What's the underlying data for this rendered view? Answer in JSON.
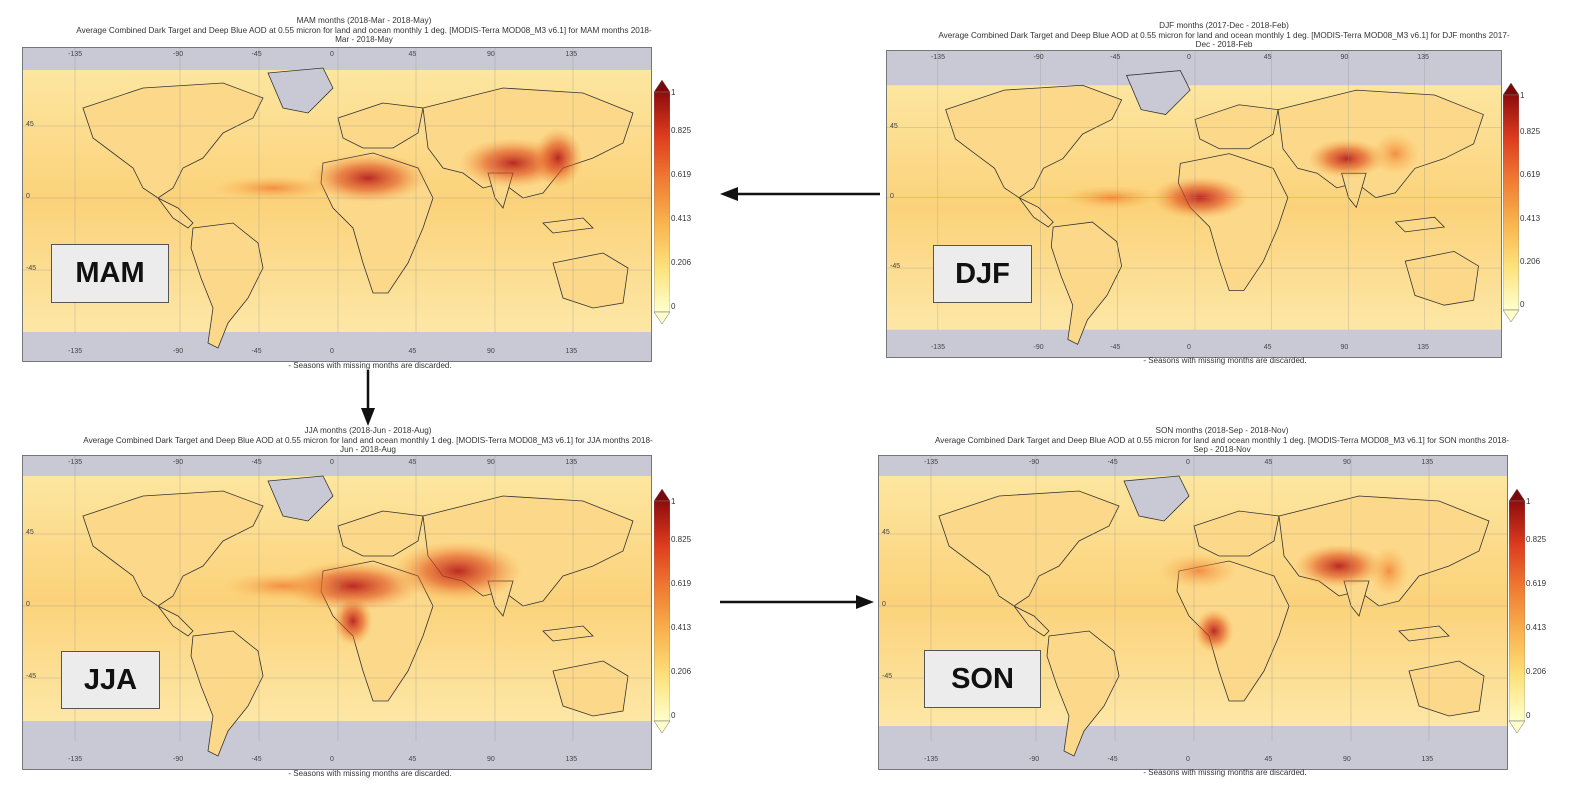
{
  "panels": {
    "mam": {
      "title1": "MAM months (2018-Mar - 2018-May)",
      "title2": "Average Combined Dark Target and Deep Blue AOD at 0.55 micron for land and ocean monthly 1 deg. [MODIS-Terra MOD08_M3 v6.1] for MAM months 2018-",
      "title3": "Mar - 2018-May",
      "season_label": "MAM",
      "footnote": "- Seasons with missing months are discarded."
    },
    "djf": {
      "title1": "DJF months (2017-Dec - 2018-Feb)",
      "title2": "Average Combined Dark Target and Deep Blue AOD at 0.55 micron for land and ocean monthly 1 deg. [MODIS-Terra MOD08_M3 v6.1] for DJF months 2017-",
      "title3": "Dec - 2018-Feb",
      "season_label": "DJF",
      "footnote": "- Seasons with missing months are discarded."
    },
    "jja": {
      "title1": "JJA months (2018-Jun - 2018-Aug)",
      "title2": "Average Combined Dark Target and Deep Blue AOD at 0.55 micron for land and ocean monthly 1 deg. [MODIS-Terra MOD08_M3 v6.1] for JJA months 2018-",
      "title3": "Jun - 2018-Aug",
      "season_label": "JJA",
      "footnote": "- Seasons with missing months are discarded."
    },
    "son": {
      "title1": "SON months (2018-Sep - 2018-Nov)",
      "title2": "Average Combined Dark Target and Deep Blue AOD at 0.55 micron for land and ocean monthly 1 deg. [MODIS-Terra MOD08_M3 v6.1] for SON months 2018-",
      "title3": "Sep - 2018-Nov",
      "season_label": "SON",
      "footnote": "- Seasons with missing months are discarded."
    }
  },
  "colorbar": {
    "ticks": [
      "1",
      "0.825",
      "0.619",
      "0.413",
      "0.206",
      "0"
    ],
    "colors": [
      "#7a0a0a",
      "#b31717",
      "#dd3c1e",
      "#f07c33",
      "#f9b44f",
      "#fde27c",
      "#ffffcc"
    ]
  },
  "lon_ticks": [
    "-135",
    "-90",
    "-45",
    "0",
    "45",
    "90",
    "135"
  ],
  "lat_ticks": [
    "45",
    "0",
    "-45"
  ],
  "colors": {
    "nodata": "#c9c9d6",
    "low_aod": "#fde27c",
    "high_aod": "#b31717"
  },
  "arrows": [
    "djf-to-mam",
    "mam-to-jja",
    "jja-to-son"
  ]
}
